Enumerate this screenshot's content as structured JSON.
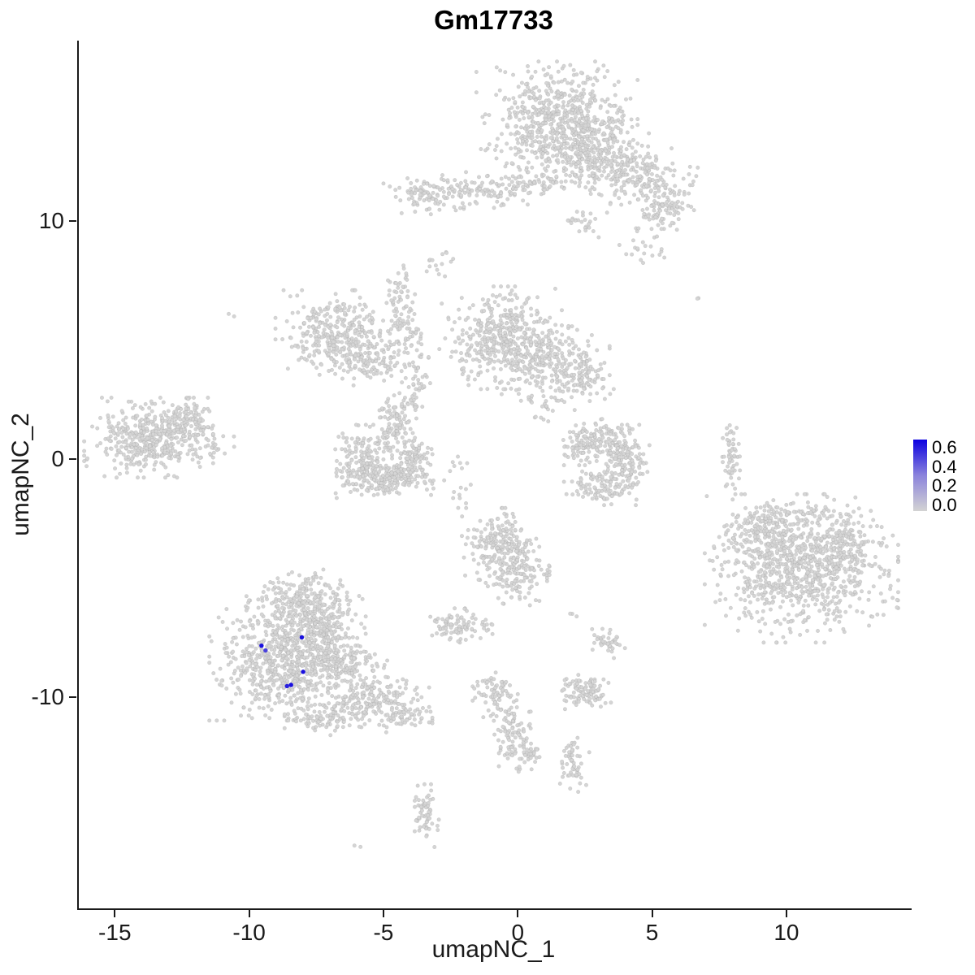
{
  "chart_data": {
    "type": "scatter",
    "title": "Gm17733",
    "xlabel": "umapNC_1",
    "ylabel": "umapNC_2",
    "xlim": [
      -16.4,
      14.6
    ],
    "ylim": [
      -18.9,
      17.6
    ],
    "x_ticks": [
      -15,
      -10,
      -5,
      0,
      5,
      10
    ],
    "y_ticks": [
      -10,
      0,
      10
    ],
    "grid": "off",
    "point_color": "#d5d5d5",
    "point_edge_color": "rgba(150,150,150,0.35)",
    "legend": {
      "position": "right",
      "labels": [
        "0.6",
        "0.4",
        "0.2",
        "0.0"
      ],
      "top_color": "#0b00e0",
      "mid_color": "#8b83dc",
      "bottom_color": "#d3d3d3"
    },
    "cluster_format": [
      "cx",
      "cy",
      "sx",
      "sy",
      "n"
    ],
    "clusters": [
      [
        1.4,
        14.2,
        1.25,
        1.05,
        650
      ],
      [
        2.9,
        12.7,
        0.8,
        0.65,
        220
      ],
      [
        4.6,
        11.8,
        0.85,
        0.6,
        180
      ],
      [
        5.3,
        10.4,
        0.5,
        0.45,
        90
      ],
      [
        -1.7,
        11.3,
        1.4,
        0.35,
        160
      ],
      [
        -3.4,
        11.0,
        0.5,
        0.3,
        50
      ],
      [
        0.3,
        11.7,
        0.7,
        0.3,
        40
      ],
      [
        2.3,
        9.9,
        0.3,
        0.25,
        25
      ],
      [
        4.6,
        8.7,
        0.4,
        0.3,
        18
      ],
      [
        -3.0,
        8.4,
        0.25,
        0.3,
        15
      ],
      [
        -6.8,
        5.3,
        0.95,
        0.75,
        330
      ],
      [
        -5.6,
        4.2,
        0.55,
        0.5,
        110
      ],
      [
        -4.4,
        6.7,
        0.25,
        0.6,
        55
      ],
      [
        -4.1,
        5.0,
        0.3,
        0.55,
        50
      ],
      [
        -3.9,
        3.2,
        0.3,
        0.5,
        45
      ],
      [
        -4.6,
        1.9,
        0.4,
        0.4,
        55
      ],
      [
        -0.7,
        5.1,
        0.95,
        0.9,
        420
      ],
      [
        1.2,
        4.1,
        0.9,
        0.7,
        230
      ],
      [
        2.4,
        3.4,
        0.5,
        0.4,
        70
      ],
      [
        1.0,
        2.3,
        0.5,
        0.6,
        25
      ],
      [
        -5.9,
        0.0,
        0.5,
        0.6,
        140
      ],
      [
        -5.0,
        -0.8,
        0.75,
        0.35,
        190
      ],
      [
        -3.9,
        -0.1,
        0.35,
        0.5,
        95
      ],
      [
        -4.6,
        0.9,
        0.4,
        0.28,
        55
      ],
      [
        -13.8,
        0.9,
        1.0,
        0.7,
        430
      ],
      [
        -12.4,
        1.5,
        0.5,
        0.45,
        110
      ],
      [
        -11.4,
        0.6,
        0.35,
        0.3,
        18
      ],
      [
        3.0,
        0.9,
        0.55,
        0.33,
        90
      ],
      [
        3.9,
        0.0,
        0.4,
        0.6,
        140
      ],
      [
        3.1,
        -1.1,
        0.6,
        0.35,
        110
      ],
      [
        2.3,
        0.4,
        0.3,
        0.4,
        55
      ],
      [
        7.9,
        0.2,
        0.16,
        0.7,
        55
      ],
      [
        10.5,
        -4.6,
        1.5,
        1.3,
        850
      ],
      [
        9.1,
        -3.1,
        0.7,
        0.6,
        140
      ],
      [
        12.3,
        -3.6,
        0.6,
        0.55,
        110
      ],
      [
        10.8,
        -2.4,
        0.8,
        0.4,
        60
      ],
      [
        -0.7,
        -3.5,
        0.6,
        0.6,
        190
      ],
      [
        -0.2,
        -4.8,
        0.55,
        0.6,
        150
      ],
      [
        -2.2,
        -1.2,
        0.25,
        0.7,
        18
      ],
      [
        -2.4,
        -7.0,
        0.45,
        0.3,
        85
      ],
      [
        -1.1,
        -7.0,
        0.15,
        0.15,
        10
      ],
      [
        3.3,
        -7.7,
        0.28,
        0.28,
        40
      ],
      [
        1.9,
        -6.6,
        0.1,
        0.1,
        3
      ],
      [
        -8.9,
        -8.6,
        1.1,
        1.0,
        650
      ],
      [
        -8.0,
        -5.9,
        0.9,
        0.55,
        240
      ],
      [
        -7.4,
        -7.2,
        0.7,
        0.6,
        200
      ],
      [
        -6.6,
        -8.6,
        0.7,
        0.5,
        160
      ],
      [
        -5.4,
        -10.2,
        0.85,
        0.45,
        190
      ],
      [
        -7.3,
        -10.9,
        0.6,
        0.3,
        90
      ],
      [
        -4.2,
        -10.8,
        0.4,
        0.3,
        45
      ],
      [
        -0.9,
        -9.9,
        0.35,
        0.4,
        75
      ],
      [
        -0.3,
        -11.6,
        0.3,
        0.6,
        90
      ],
      [
        0.3,
        -12.5,
        0.22,
        0.3,
        35
      ],
      [
        2.4,
        -9.8,
        0.42,
        0.3,
        100
      ],
      [
        2.0,
        -12.8,
        0.25,
        0.5,
        55
      ],
      [
        -3.5,
        -15.0,
        0.25,
        0.55,
        65
      ],
      [
        -6.0,
        -16.3,
        0.1,
        0.1,
        2
      ],
      [
        -10.7,
        6.0,
        0.05,
        0.05,
        2
      ],
      [
        6.7,
        6.8,
        0.05,
        0.05,
        2
      ]
    ],
    "expressing_cells": [
      {
        "x": -9.6,
        "y": -7.85,
        "value": 0.6
      },
      {
        "x": -9.45,
        "y": -8.05,
        "value": 0.45
      },
      {
        "x": -8.1,
        "y": -7.5,
        "value": 0.6
      },
      {
        "x": -8.05,
        "y": -8.95,
        "value": 0.6
      },
      {
        "x": -8.65,
        "y": -9.55,
        "value": 0.55
      },
      {
        "x": -8.5,
        "y": -9.5,
        "value": 0.6
      }
    ],
    "value_range_shown": [
      0.0,
      0.6
    ]
  }
}
